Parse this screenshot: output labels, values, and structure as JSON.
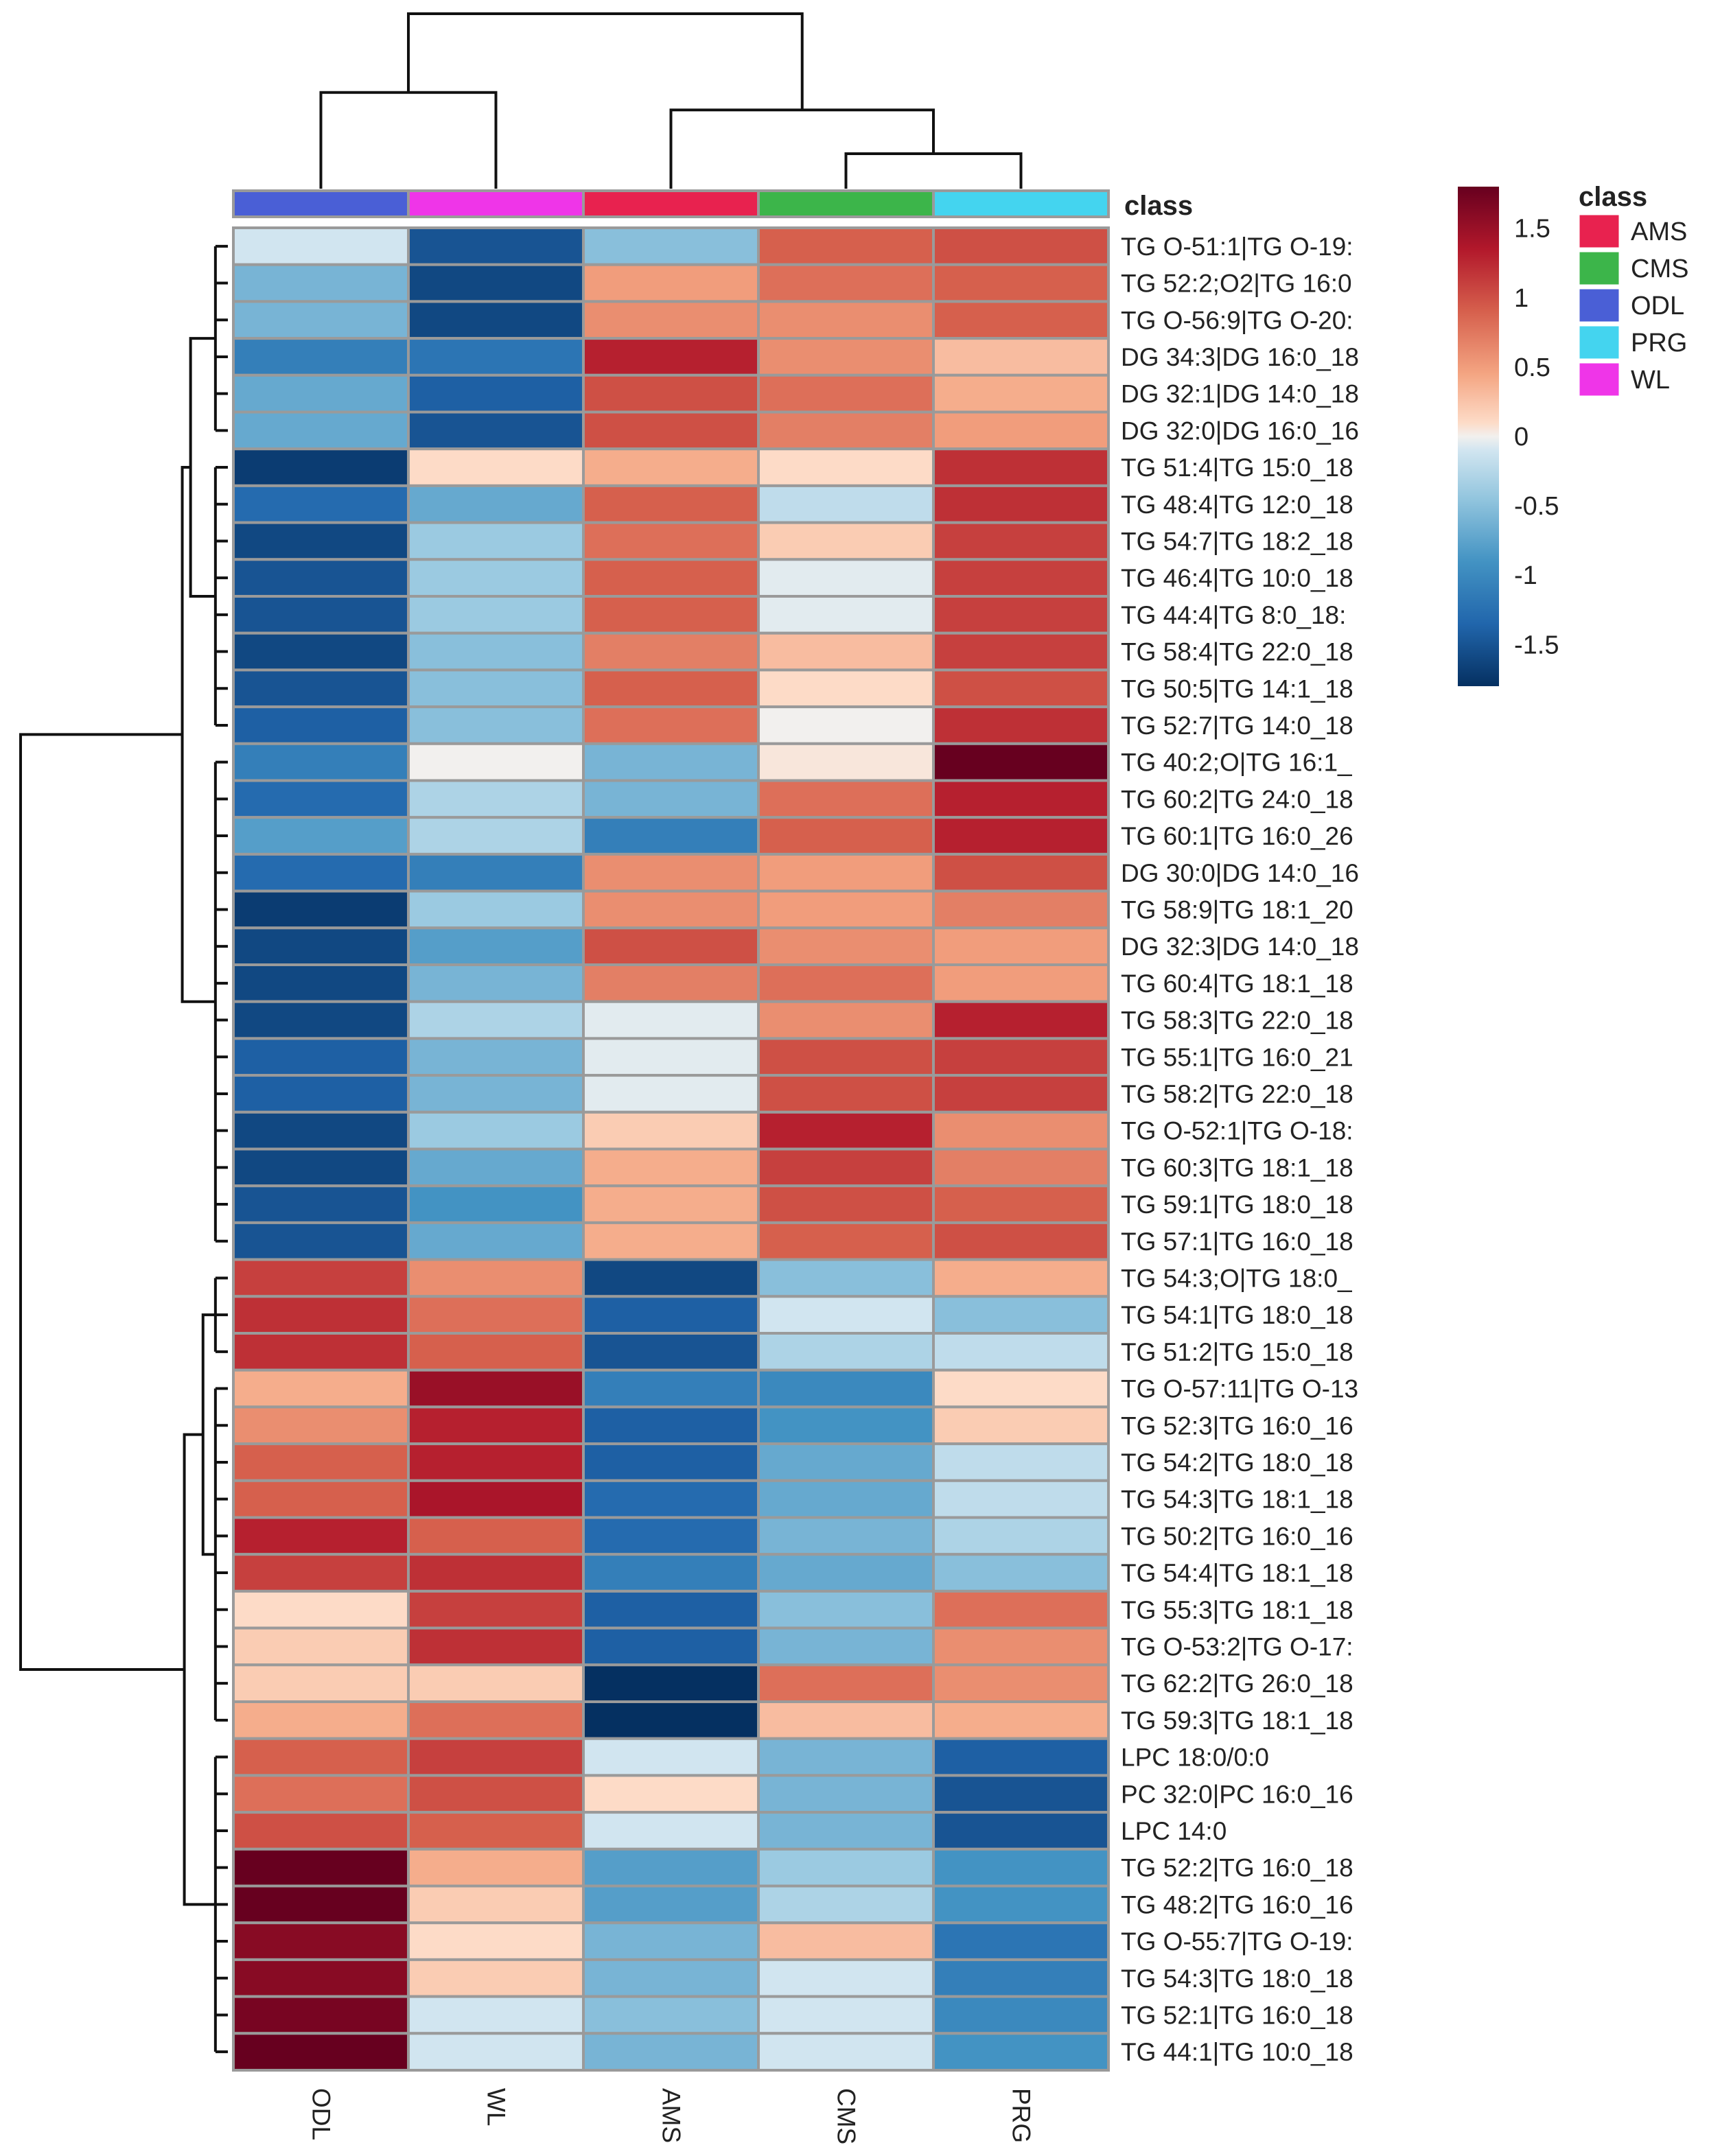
{
  "chart_data": {
    "type": "heatmap",
    "title": "",
    "columns": [
      "ODL",
      "WL",
      "AMS",
      "CMS",
      "PRG"
    ],
    "column_classes": [
      "ODL",
      "WL",
      "AMS",
      "CMS",
      "PRG"
    ],
    "class_label": "class",
    "class_legend": {
      "title": "class",
      "entries": [
        {
          "name": "AMS",
          "color": "#e8224f"
        },
        {
          "name": "CMS",
          "color": "#3cb54a"
        },
        {
          "name": "ODL",
          "color": "#4a5fd6"
        },
        {
          "name": "PRG",
          "color": "#44d4ef"
        },
        {
          "name": "WL",
          "color": "#ef35e8"
        }
      ]
    },
    "color_scale": {
      "min": -1.8,
      "max": 1.8,
      "ticks": [
        "1.5",
        "1",
        "0.5",
        "0",
        "-0.5",
        "-1",
        "-1.5"
      ],
      "tick_values": [
        1.5,
        1,
        0.5,
        0,
        -0.5,
        -1,
        -1.5
      ],
      "low_color": "#053061",
      "mid_color": "#f7f7f7",
      "high_color": "#67001f"
    },
    "rows": [
      {
        "label": "TG O-51:1|TG O-19:",
        "values": [
          -0.1,
          -1.5,
          -0.5,
          0.9,
          1.0
        ]
      },
      {
        "label": "TG 52:2;O2|TG 16:0",
        "values": [
          -0.6,
          -1.6,
          0.5,
          0.8,
          0.9
        ]
      },
      {
        "label": "TG O-56:9|TG O-20:",
        "values": [
          -0.6,
          -1.6,
          0.6,
          0.6,
          0.9
        ]
      },
      {
        "label": "DG 34:3|DG 16:0_18",
        "values": [
          -1.1,
          -1.2,
          1.3,
          0.6,
          0.3
        ]
      },
      {
        "label": "DG 32:1|DG 14:0_18",
        "values": [
          -0.7,
          -1.4,
          1.0,
          0.8,
          0.4
        ]
      },
      {
        "label": "DG 32:0|DG 16:0_16",
        "values": [
          -0.7,
          -1.5,
          1.0,
          0.7,
          0.5
        ]
      },
      {
        "label": "TG 51:4|TG 15:0_18",
        "values": [
          -1.7,
          0.1,
          0.4,
          0.1,
          1.2
        ]
      },
      {
        "label": "TG 48:4|TG 12:0_18",
        "values": [
          -1.3,
          -0.7,
          0.9,
          -0.2,
          1.2
        ]
      },
      {
        "label": "TG 54:7|TG 18:2_18",
        "values": [
          -1.6,
          -0.4,
          0.8,
          0.2,
          1.1
        ]
      },
      {
        "label": "TG 46:4|TG 10:0_18",
        "values": [
          -1.5,
          -0.4,
          0.9,
          -0.05,
          1.1
        ]
      },
      {
        "label": "TG 44:4|TG 8:0_18:",
        "values": [
          -1.5,
          -0.4,
          0.9,
          -0.05,
          1.1
        ]
      },
      {
        "label": "TG 58:4|TG 22:0_18",
        "values": [
          -1.6,
          -0.5,
          0.7,
          0.3,
          1.1
        ]
      },
      {
        "label": "TG 50:5|TG 14:1_18",
        "values": [
          -1.5,
          -0.5,
          0.9,
          0.1,
          1.0
        ]
      },
      {
        "label": "TG 52:7|TG 14:0_18",
        "values": [
          -1.4,
          -0.5,
          0.8,
          0.0,
          1.2
        ]
      },
      {
        "label": "TG 40:2;O|TG 16:1_",
        "values": [
          -1.1,
          0.0,
          -0.6,
          0.05,
          1.8
        ]
      },
      {
        "label": "TG 60:2|TG 24:0_18",
        "values": [
          -1.3,
          -0.3,
          -0.6,
          0.8,
          1.3
        ]
      },
      {
        "label": "TG 60:1|TG 16:0_26",
        "values": [
          -0.8,
          -0.3,
          -1.1,
          0.9,
          1.3
        ]
      },
      {
        "label": "DG 30:0|DG 14:0_16",
        "values": [
          -1.3,
          -1.1,
          0.6,
          0.5,
          1.0
        ]
      },
      {
        "label": "TG 58:9|TG 18:1_20",
        "values": [
          -1.7,
          -0.4,
          0.6,
          0.5,
          0.7
        ]
      },
      {
        "label": "DG 32:3|DG 14:0_18",
        "values": [
          -1.6,
          -0.8,
          1.0,
          0.6,
          0.5
        ]
      },
      {
        "label": "TG 60:4|TG 18:1_18",
        "values": [
          -1.6,
          -0.6,
          0.7,
          0.8,
          0.5
        ]
      },
      {
        "label": "TG 58:3|TG 22:0_18",
        "values": [
          -1.6,
          -0.3,
          -0.05,
          0.6,
          1.3
        ]
      },
      {
        "label": "TG 55:1|TG 16:0_21",
        "values": [
          -1.4,
          -0.6,
          -0.05,
          1.0,
          1.1
        ]
      },
      {
        "label": "TG 58:2|TG 22:0_18",
        "values": [
          -1.4,
          -0.6,
          -0.05,
          1.0,
          1.1
        ]
      },
      {
        "label": "TG O-52:1|TG O-18:",
        "values": [
          -1.6,
          -0.4,
          0.2,
          1.3,
          0.6
        ]
      },
      {
        "label": "TG 60:3|TG 18:1_18",
        "values": [
          -1.6,
          -0.7,
          0.4,
          1.1,
          0.7
        ]
      },
      {
        "label": "TG 59:1|TG 18:0_18",
        "values": [
          -1.5,
          -0.9,
          0.4,
          1.0,
          0.9
        ]
      },
      {
        "label": "TG 57:1|TG 16:0_18",
        "values": [
          -1.5,
          -0.7,
          0.4,
          0.9,
          1.0
        ]
      },
      {
        "label": "TG 54:3;O|TG 18:0_",
        "values": [
          1.1,
          0.6,
          -1.6,
          -0.5,
          0.4
        ]
      },
      {
        "label": "TG 54:1|TG 18:0_18",
        "values": [
          1.2,
          0.8,
          -1.4,
          -0.1,
          -0.5
        ]
      },
      {
        "label": "TG 51:2|TG 15:0_18",
        "values": [
          1.2,
          0.9,
          -1.5,
          -0.3,
          -0.2
        ]
      },
      {
        "label": "TG O-57:11|TG O-13",
        "values": [
          0.4,
          1.5,
          -1.1,
          -1.0,
          0.1
        ]
      },
      {
        "label": "TG 52:3|TG 16:0_16",
        "values": [
          0.6,
          1.3,
          -1.4,
          -0.9,
          0.2
        ]
      },
      {
        "label": "TG 54:2|TG 18:0_18",
        "values": [
          0.9,
          1.3,
          -1.4,
          -0.7,
          -0.2
        ]
      },
      {
        "label": "TG 54:3|TG 18:1_18",
        "values": [
          0.9,
          1.4,
          -1.3,
          -0.7,
          -0.2
        ]
      },
      {
        "label": "TG 50:2|TG 16:0_16",
        "values": [
          1.3,
          0.9,
          -1.3,
          -0.6,
          -0.3
        ]
      },
      {
        "label": "TG 54:4|TG 18:1_18",
        "values": [
          1.1,
          1.2,
          -1.1,
          -0.7,
          -0.5
        ]
      },
      {
        "label": "TG 55:3|TG 18:1_18",
        "values": [
          0.1,
          1.1,
          -1.4,
          -0.5,
          0.8
        ]
      },
      {
        "label": "TG O-53:2|TG O-17:",
        "values": [
          0.2,
          1.2,
          -1.4,
          -0.6,
          0.6
        ]
      },
      {
        "label": "TG 62:2|TG 26:0_18",
        "values": [
          0.2,
          0.2,
          -1.8,
          0.8,
          0.6
        ]
      },
      {
        "label": "TG 59:3|TG 18:1_18",
        "values": [
          0.4,
          0.8,
          -1.8,
          0.3,
          0.4
        ]
      },
      {
        "label": "LPC 18:0/0:0",
        "values": [
          0.9,
          1.1,
          -0.1,
          -0.6,
          -1.4
        ]
      },
      {
        "label": "PC 32:0|PC 16:0_16",
        "values": [
          0.8,
          1.0,
          0.1,
          -0.6,
          -1.5
        ]
      },
      {
        "label": "LPC 14:0",
        "values": [
          1.0,
          0.9,
          -0.1,
          -0.6,
          -1.5
        ]
      },
      {
        "label": "TG 52:2|TG 16:0_18",
        "values": [
          1.8,
          0.4,
          -0.8,
          -0.4,
          -0.9
        ]
      },
      {
        "label": "TG 48:2|TG 16:0_16",
        "values": [
          1.8,
          0.2,
          -0.8,
          -0.3,
          -0.9
        ]
      },
      {
        "label": "TG O-55:7|TG O-19:",
        "values": [
          1.6,
          0.1,
          -0.6,
          0.3,
          -1.2
        ]
      },
      {
        "label": "TG 54:3|TG 18:0_18",
        "values": [
          1.6,
          0.2,
          -0.6,
          -0.1,
          -1.1
        ]
      },
      {
        "label": "TG 52:1|TG 16:0_18",
        "values": [
          1.7,
          -0.1,
          -0.5,
          -0.1,
          -1.0
        ]
      },
      {
        "label": "TG 44:1|TG 10:0_18",
        "values": [
          1.8,
          -0.1,
          -0.6,
          -0.1,
          -0.9
        ]
      }
    ],
    "column_dendrogram": {
      "leaf_order": [
        "ODL",
        "WL",
        "AMS",
        "CMS",
        "PRG"
      ],
      "merges": [
        {
          "left": [
            3
          ],
          "right": [
            4
          ],
          "height": 0.2
        },
        {
          "left": [
            0
          ],
          "right": [
            1
          ],
          "height": 0.55
        },
        {
          "left": [
            2
          ],
          "right": [
            3,
            4
          ],
          "height": 0.45
        },
        {
          "left": [
            0,
            1
          ],
          "right": [
            2,
            3,
            4
          ],
          "height": 1.0
        }
      ]
    },
    "row_dendrogram": {
      "merges": [
        {
          "left": [
            0,
            1,
            2,
            3,
            4,
            5
          ],
          "right": [
            6,
            7,
            8,
            9,
            10,
            11,
            12,
            13
          ],
          "height": 0.18
        },
        {
          "left": [
            0,
            1,
            2,
            3,
            4,
            5,
            6,
            7,
            8,
            9,
            10,
            11,
            12,
            13
          ],
          "right": [
            14,
            15,
            16,
            17,
            18,
            19,
            20,
            21,
            22,
            23,
            24,
            25,
            26,
            27
          ],
          "height": 0.22
        },
        {
          "left": [
            28,
            29,
            30
          ],
          "right": [
            31,
            32,
            33,
            34,
            35,
            36,
            37,
            38,
            39,
            40
          ],
          "height": 0.12
        },
        {
          "left": [
            28,
            29,
            30,
            31,
            32,
            33,
            34,
            35,
            36,
            37,
            38,
            39,
            40
          ],
          "right": [
            41,
            42,
            43,
            44,
            45,
            46,
            47,
            48,
            49
          ],
          "height": 0.21
        },
        {
          "left": [
            0,
            1,
            2,
            3,
            4,
            5,
            6,
            7,
            8,
            9,
            10,
            11,
            12,
            13,
            14,
            15,
            16,
            17,
            18,
            19,
            20,
            21,
            22,
            23,
            24,
            25,
            26,
            27
          ],
          "right": [
            28,
            29,
            30,
            31,
            32,
            33,
            34,
            35,
            36,
            37,
            38,
            39,
            40,
            41,
            42,
            43,
            44,
            45,
            46,
            47,
            48,
            49
          ],
          "height": 1.0
        }
      ]
    }
  }
}
